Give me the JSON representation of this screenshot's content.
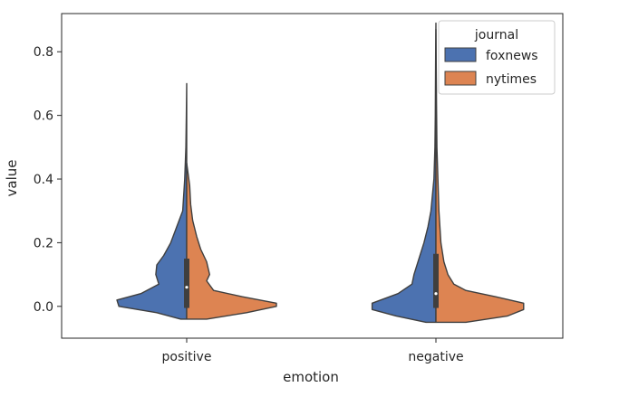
{
  "chart_data": {
    "type": "violin",
    "title": "",
    "xlabel": "emotion",
    "ylabel": "value",
    "categories": [
      "positive",
      "negative"
    ],
    "ylim": [
      -0.1,
      0.92
    ],
    "yticks": [
      "0.0",
      "0.2",
      "0.4",
      "0.6",
      "0.8"
    ],
    "grid": false,
    "split": true,
    "legend": {
      "title": "journal",
      "placement": "upper right",
      "entries": [
        "foxnews",
        "nytimes"
      ]
    },
    "series": [
      {
        "name": "foxnews",
        "color": "#4c72b0",
        "violins": [
          {
            "category": "positive",
            "profile": [
              [
                -0.04,
                0.06
              ],
              [
                -0.02,
                0.3
              ],
              [
                0.0,
                0.68
              ],
              [
                0.02,
                0.7
              ],
              [
                0.04,
                0.46
              ],
              [
                0.07,
                0.28
              ],
              [
                0.1,
                0.31
              ],
              [
                0.13,
                0.3
              ],
              [
                0.16,
                0.23
              ],
              [
                0.2,
                0.16
              ],
              [
                0.25,
                0.1
              ],
              [
                0.3,
                0.04
              ],
              [
                0.4,
                0.02
              ],
              [
                0.5,
                0.008
              ],
              [
                0.6,
                0.004
              ],
              [
                0.7,
                0.0
              ]
            ]
          },
          {
            "category": "negative",
            "profile": [
              [
                -0.05,
                0.1
              ],
              [
                -0.03,
                0.4
              ],
              [
                -0.01,
                0.64
              ],
              [
                0.01,
                0.64
              ],
              [
                0.04,
                0.38
              ],
              [
                0.07,
                0.24
              ],
              [
                0.1,
                0.22
              ],
              [
                0.15,
                0.17
              ],
              [
                0.2,
                0.12
              ],
              [
                0.25,
                0.08
              ],
              [
                0.3,
                0.05
              ],
              [
                0.4,
                0.02
              ],
              [
                0.5,
                0.01
              ],
              [
                0.6,
                0.006
              ],
              [
                0.8,
                0.003
              ],
              [
                0.89,
                0.0
              ]
            ]
          }
        ]
      },
      {
        "name": "nytimes",
        "color": "#dd8452",
        "violins": [
          {
            "category": "positive",
            "profile": [
              [
                -0.04,
                0.2
              ],
              [
                -0.02,
                0.6
              ],
              [
                0.0,
                0.9
              ],
              [
                0.01,
                0.9
              ],
              [
                0.03,
                0.56
              ],
              [
                0.05,
                0.27
              ],
              [
                0.08,
                0.2
              ],
              [
                0.1,
                0.23
              ],
              [
                0.14,
                0.2
              ],
              [
                0.18,
                0.14
              ],
              [
                0.22,
                0.1
              ],
              [
                0.27,
                0.06
              ],
              [
                0.32,
                0.04
              ],
              [
                0.38,
                0.03
              ],
              [
                0.45,
                0.0
              ]
            ]
          },
          {
            "category": "negative",
            "profile": [
              [
                -0.05,
                0.3
              ],
              [
                -0.03,
                0.72
              ],
              [
                -0.01,
                0.88
              ],
              [
                0.01,
                0.88
              ],
              [
                0.03,
                0.6
              ],
              [
                0.05,
                0.3
              ],
              [
                0.07,
                0.18
              ],
              [
                0.1,
                0.12
              ],
              [
                0.14,
                0.08
              ],
              [
                0.2,
                0.05
              ],
              [
                0.3,
                0.03
              ],
              [
                0.4,
                0.02
              ],
              [
                0.5,
                0.01
              ],
              [
                0.65,
                0.005
              ],
              [
                0.8,
                0.002
              ],
              [
                0.87,
                0.0
              ]
            ]
          }
        ]
      }
    ],
    "inner_box": [
      {
        "category": "positive",
        "q1": -0.005,
        "median": 0.06,
        "q3": 0.15
      },
      {
        "category": "negative",
        "q1": -0.005,
        "median": 0.04,
        "q3": 0.165
      }
    ]
  }
}
